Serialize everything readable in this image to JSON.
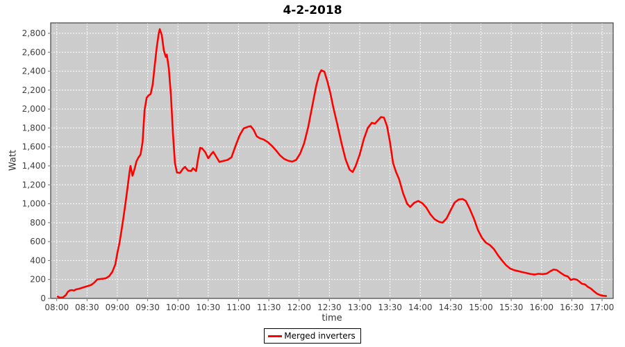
{
  "chart_data": {
    "type": "line",
    "title": "4-2-2018",
    "xlabel": "time",
    "ylabel": "Watt",
    "legend_position": "bottom",
    "grid": "white dashed gridlines on gray plot background",
    "plot_bg_color": "#cccccc",
    "gridline_color": "#ffffff",
    "border_color": "#4d4d4d",
    "tick_color": "#6e6e6e",
    "x_ticks": [
      "08:00",
      "08:30",
      "09:00",
      "09:30",
      "10:00",
      "10:30",
      "11:00",
      "11:30",
      "12:00",
      "12:30",
      "13:00",
      "13:30",
      "14:00",
      "14:30",
      "15:00",
      "15:30",
      "16:00",
      "16:30",
      "17:00"
    ],
    "y_ticks": [
      0,
      200,
      400,
      600,
      800,
      1000,
      1200,
      1400,
      1600,
      1800,
      2000,
      2200,
      2400,
      2600,
      2800
    ],
    "xlim": [
      "07:54",
      "17:11"
    ],
    "ylim": [
      0,
      2910
    ],
    "series": [
      {
        "name": "Merged inverters",
        "color": "#ff0000",
        "points": [
          [
            "08:01",
            20
          ],
          [
            "08:03",
            8
          ],
          [
            "08:06",
            10
          ],
          [
            "08:09",
            35
          ],
          [
            "08:11",
            70
          ],
          [
            "08:13",
            85
          ],
          [
            "08:15",
            88
          ],
          [
            "08:17",
            82
          ],
          [
            "08:19",
            95
          ],
          [
            "08:22",
            102
          ],
          [
            "08:25",
            112
          ],
          [
            "08:28",
            122
          ],
          [
            "08:31",
            132
          ],
          [
            "08:34",
            142
          ],
          [
            "08:37",
            165
          ],
          [
            "08:40",
            200
          ],
          [
            "08:43",
            205
          ],
          [
            "08:46",
            208
          ],
          [
            "08:49",
            215
          ],
          [
            "08:52",
            235
          ],
          [
            "08:55",
            280
          ],
          [
            "08:58",
            360
          ],
          [
            "09:00",
            480
          ],
          [
            "09:02",
            580
          ],
          [
            "09:04",
            710
          ],
          [
            "09:06",
            850
          ],
          [
            "09:08",
            1000
          ],
          [
            "09:10",
            1160
          ],
          [
            "09:12",
            1330
          ],
          [
            "09:13",
            1400
          ],
          [
            "09:15",
            1295
          ],
          [
            "09:17",
            1365
          ],
          [
            "09:19",
            1450
          ],
          [
            "09:21",
            1490
          ],
          [
            "09:23",
            1520
          ],
          [
            "09:25",
            1650
          ],
          [
            "09:27",
            1990
          ],
          [
            "09:29",
            2120
          ],
          [
            "09:31",
            2145
          ],
          [
            "09:33",
            2160
          ],
          [
            "09:35",
            2260
          ],
          [
            "09:37",
            2460
          ],
          [
            "09:39",
            2650
          ],
          [
            "09:41",
            2800
          ],
          [
            "09:42",
            2845
          ],
          [
            "09:44",
            2780
          ],
          [
            "09:46",
            2620
          ],
          [
            "09:48",
            2550
          ],
          [
            "09:49",
            2575
          ],
          [
            "09:51",
            2430
          ],
          [
            "09:53",
            2150
          ],
          [
            "09:55",
            1750
          ],
          [
            "09:57",
            1430
          ],
          [
            "09:59",
            1330
          ],
          [
            "10:02",
            1325
          ],
          [
            "10:05",
            1370
          ],
          [
            "10:07",
            1390
          ],
          [
            "10:10",
            1350
          ],
          [
            "10:13",
            1345
          ],
          [
            "10:15",
            1375
          ],
          [
            "10:18",
            1345
          ],
          [
            "10:20",
            1480
          ],
          [
            "10:22",
            1590
          ],
          [
            "10:24",
            1585
          ],
          [
            "10:27",
            1545
          ],
          [
            "10:30",
            1480
          ],
          [
            "10:33",
            1525
          ],
          [
            "10:35",
            1548
          ],
          [
            "10:38",
            1495
          ],
          [
            "10:41",
            1442
          ],
          [
            "10:45",
            1452
          ],
          [
            "10:49",
            1462
          ],
          [
            "10:53",
            1490
          ],
          [
            "10:57",
            1610
          ],
          [
            "11:01",
            1720
          ],
          [
            "11:05",
            1795
          ],
          [
            "11:09",
            1812
          ],
          [
            "11:12",
            1820
          ],
          [
            "11:15",
            1780
          ],
          [
            "11:18",
            1712
          ],
          [
            "11:21",
            1692
          ],
          [
            "11:25",
            1678
          ],
          [
            "11:29",
            1650
          ],
          [
            "11:33",
            1612
          ],
          [
            "11:37",
            1565
          ],
          [
            "11:41",
            1512
          ],
          [
            "11:45",
            1475
          ],
          [
            "11:49",
            1455
          ],
          [
            "11:53",
            1445
          ],
          [
            "11:57",
            1462
          ],
          [
            "12:01",
            1530
          ],
          [
            "12:05",
            1640
          ],
          [
            "12:09",
            1810
          ],
          [
            "12:13",
            2030
          ],
          [
            "12:17",
            2250
          ],
          [
            "12:20",
            2370
          ],
          [
            "12:22",
            2410
          ],
          [
            "12:25",
            2395
          ],
          [
            "12:28",
            2290
          ],
          [
            "12:31",
            2165
          ],
          [
            "12:34",
            2010
          ],
          [
            "12:38",
            1830
          ],
          [
            "12:42",
            1640
          ],
          [
            "12:46",
            1470
          ],
          [
            "12:50",
            1360
          ],
          [
            "12:53",
            1335
          ],
          [
            "12:56",
            1400
          ],
          [
            "13:00",
            1520
          ],
          [
            "13:04",
            1680
          ],
          [
            "13:08",
            1800
          ],
          [
            "13:12",
            1855
          ],
          [
            "13:15",
            1845
          ],
          [
            "13:18",
            1880
          ],
          [
            "13:21",
            1915
          ],
          [
            "13:24",
            1910
          ],
          [
            "13:27",
            1820
          ],
          [
            "13:30",
            1650
          ],
          [
            "13:33",
            1430
          ],
          [
            "13:36",
            1335
          ],
          [
            "13:39",
            1260
          ],
          [
            "13:43",
            1110
          ],
          [
            "13:47",
            1000
          ],
          [
            "13:50",
            965
          ],
          [
            "13:54",
            1010
          ],
          [
            "13:58",
            1030
          ],
          [
            "14:02",
            1005
          ],
          [
            "14:06",
            958
          ],
          [
            "14:10",
            888
          ],
          [
            "14:14",
            838
          ],
          [
            "14:18",
            812
          ],
          [
            "14:22",
            800
          ],
          [
            "14:26",
            845
          ],
          [
            "14:30",
            930
          ],
          [
            "14:34",
            1012
          ],
          [
            "14:38",
            1045
          ],
          [
            "14:42",
            1050
          ],
          [
            "14:45",
            1030
          ],
          [
            "14:49",
            945
          ],
          [
            "14:53",
            845
          ],
          [
            "14:57",
            725
          ],
          [
            "15:01",
            640
          ],
          [
            "15:05",
            588
          ],
          [
            "15:09",
            562
          ],
          [
            "15:13",
            520
          ],
          [
            "15:17",
            455
          ],
          [
            "15:21",
            400
          ],
          [
            "15:25",
            350
          ],
          [
            "15:29",
            315
          ],
          [
            "15:33",
            298
          ],
          [
            "15:37",
            288
          ],
          [
            "15:41",
            278
          ],
          [
            "15:45",
            268
          ],
          [
            "15:49",
            258
          ],
          [
            "15:53",
            252
          ],
          [
            "15:57",
            260
          ],
          [
            "16:01",
            256
          ],
          [
            "16:05",
            262
          ],
          [
            "16:09",
            288
          ],
          [
            "16:12",
            305
          ],
          [
            "16:15",
            300
          ],
          [
            "16:19",
            270
          ],
          [
            "16:23",
            242
          ],
          [
            "16:26",
            232
          ],
          [
            "16:29",
            195
          ],
          [
            "16:32",
            205
          ],
          [
            "16:35",
            198
          ],
          [
            "16:37",
            182
          ],
          [
            "16:40",
            155
          ],
          [
            "16:43",
            148
          ],
          [
            "16:46",
            122
          ],
          [
            "16:49",
            103
          ],
          [
            "16:52",
            75
          ],
          [
            "16:55",
            50
          ],
          [
            "16:58",
            35
          ],
          [
            "17:01",
            28
          ],
          [
            "17:04",
            25
          ]
        ]
      }
    ]
  }
}
